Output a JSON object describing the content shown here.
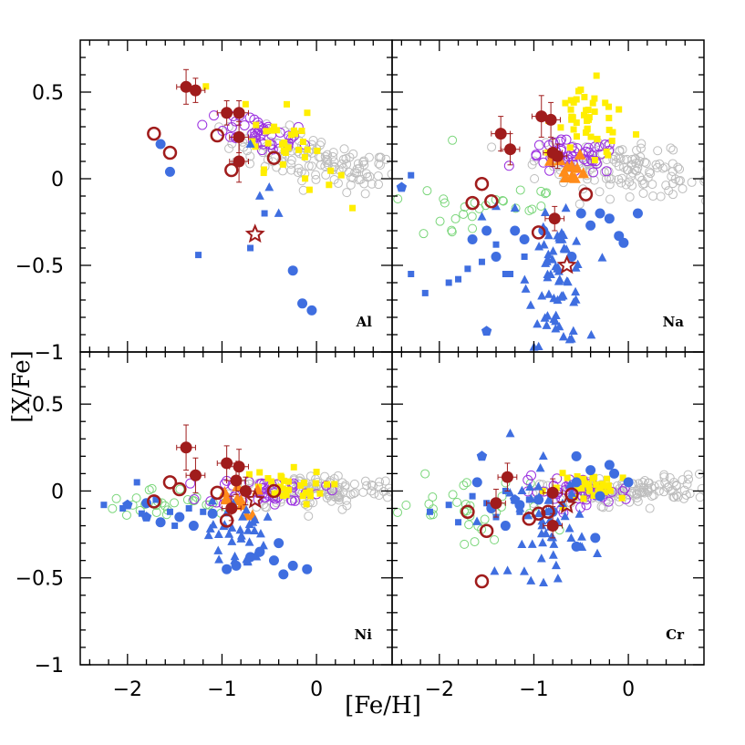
{
  "chart_data": {
    "type": "scatter",
    "xlabel": "[Fe/H]",
    "ylabel": "[X/Fe]",
    "xlim": [
      -2.5,
      0.8
    ],
    "ylim": [
      -1.0,
      0.8
    ],
    "x_ticks": [
      -2,
      -1,
      0
    ],
    "x_tick_labels": [
      "−2",
      "−1",
      "0"
    ],
    "y_ticks": [
      0.5,
      0,
      -0.5,
      -1
    ],
    "y_tick_labels": [
      "0.5",
      "0",
      "−0.5",
      "−1"
    ],
    "colors": {
      "gray": "#bdbdbd",
      "purple": "#9b30e0",
      "green": "#7ad67a",
      "yellow": "#ffee00",
      "orange": "#ff8c1a",
      "blue": "#3f6ee0",
      "darkred": "#a01c1c"
    },
    "panels": [
      {
        "label": "Al",
        "gray": {
          "cx": 0.0,
          "cy": 0.1,
          "sx": 0.45,
          "sy": 0.07,
          "slope": -0.12,
          "n": 130
        },
        "purple": {
          "cx": -0.6,
          "cy": 0.27,
          "sx": 0.28,
          "sy": 0.06,
          "slope": -0.15,
          "n": 45
        },
        "green": {
          "n": 0
        },
        "yellow": {
          "cx": -0.3,
          "cy": 0.2,
          "sx": 0.25,
          "sy": 0.1,
          "slope": -0.25,
          "n": 35
        },
        "orange": {
          "n": 0
        },
        "blue_triangles": [
          [
            -0.85,
            0.1
          ],
          [
            -0.7,
            0.2
          ],
          [
            -0.6,
            -0.1
          ],
          [
            -0.5,
            -0.05
          ],
          [
            -0.4,
            -0.2
          ]
        ],
        "blue_squares": [
          [
            -1.25,
            -0.44
          ],
          [
            -0.7,
            -0.4
          ],
          [
            -0.55,
            -0.2
          ]
        ],
        "blue_circles": [
          [
            -1.65,
            0.2
          ],
          [
            -1.55,
            0.04
          ],
          [
            -0.25,
            -0.53
          ],
          [
            -0.15,
            -0.72
          ],
          [
            -0.05,
            -0.76
          ]
        ],
        "red_filled": [
          [
            -1.38,
            0.53,
            0.1,
            0.1
          ],
          [
            -1.28,
            0.51,
            0.1,
            0.07
          ],
          [
            -0.95,
            0.38,
            0.1,
            0.07
          ],
          [
            -0.82,
            0.38,
            0.1,
            0.07
          ],
          [
            -0.82,
            0.24,
            0.1,
            0.09
          ],
          [
            -0.82,
            0.1,
            0.1,
            0.12
          ]
        ],
        "red_open": [
          [
            -1.72,
            0.26
          ],
          [
            -1.55,
            0.15
          ],
          [
            -1.05,
            0.25
          ],
          [
            -0.9,
            0.05
          ],
          [
            -0.45,
            0.12
          ]
        ],
        "red_star": [
          [
            -0.65,
            -0.32
          ]
        ]
      },
      {
        "label": "Na",
        "gray": {
          "cx": 0.0,
          "cy": 0.05,
          "sx": 0.5,
          "sy": 0.07,
          "slope": -0.08,
          "n": 130
        },
        "purple": {
          "cx": -0.6,
          "cy": 0.12,
          "sx": 0.25,
          "sy": 0.05,
          "slope": 0,
          "n": 50
        },
        "green": {
          "cx": -1.6,
          "cy": -0.15,
          "sx": 0.6,
          "sy": 0.12,
          "slope": 0.08,
          "n": 30
        },
        "yellow": {
          "cx": -0.4,
          "cy": 0.32,
          "sx": 0.2,
          "sy": 0.12,
          "slope": -0.3,
          "n": 45
        },
        "orange": {
          "cx": -0.6,
          "cy": 0.06,
          "sx": 0.08,
          "sy": 0.04,
          "slope": 0,
          "n": 12
        },
        "blue_triangle_cluster": {
          "cx": -0.75,
          "cy": -0.6,
          "sx": 0.15,
          "sy": 0.18,
          "n": 65
        },
        "blue_squares": [
          [
            -2.3,
            -0.55
          ],
          [
            -2.15,
            -0.66
          ],
          [
            -1.9,
            -0.6
          ],
          [
            -1.8,
            -0.58
          ],
          [
            -1.7,
            -0.52
          ],
          [
            -1.55,
            -0.48
          ],
          [
            -1.4,
            -0.38
          ],
          [
            -1.3,
            -0.55
          ],
          [
            -1.25,
            -0.55
          ],
          [
            -1.1,
            -0.45
          ],
          [
            -2.3,
            0.02
          ]
        ],
        "blue_circles": [
          [
            -1.65,
            -0.35
          ],
          [
            -1.5,
            -0.3
          ],
          [
            -1.4,
            -0.45
          ],
          [
            -1.2,
            -0.3
          ],
          [
            -1.1,
            -0.35
          ],
          [
            -0.9,
            -0.3
          ],
          [
            -0.5,
            -0.2
          ],
          [
            -0.4,
            -0.27
          ],
          [
            -0.3,
            -0.2
          ],
          [
            -0.2,
            -0.23
          ],
          [
            -0.1,
            -0.33
          ],
          [
            -0.05,
            -0.37
          ],
          [
            0.1,
            -0.2
          ],
          [
            -0.6,
            -0.45
          ]
        ],
        "blue_triangles": [
          [
            -1.55,
            -0.22
          ],
          [
            -1.4,
            -0.16
          ],
          [
            -1.2,
            -0.17
          ],
          [
            -0.9,
            -0.28
          ],
          [
            -0.75,
            -0.33
          ]
        ],
        "blue_pentagons": [
          [
            -1.5,
            -0.88
          ],
          [
            -2.4,
            -0.05
          ]
        ],
        "red_filled": [
          [
            -1.35,
            0.26,
            0.1,
            0.1
          ],
          [
            -1.25,
            0.17,
            0.1,
            0.09
          ],
          [
            -0.92,
            0.36,
            0.1,
            0.12
          ],
          [
            -0.82,
            0.34,
            0.1,
            0.1
          ],
          [
            -0.8,
            0.15,
            0.1,
            0.08
          ],
          [
            -0.75,
            0.13,
            0.1,
            0.07
          ],
          [
            -0.78,
            -0.23,
            0.1,
            0.07
          ]
        ],
        "red_open": [
          [
            -1.55,
            -0.03
          ],
          [
            -1.65,
            -0.14
          ],
          [
            -1.45,
            -0.13
          ],
          [
            -0.95,
            -0.31
          ],
          [
            -0.45,
            -0.09
          ]
        ],
        "red_star": [
          [
            -0.65,
            -0.5
          ]
        ]
      },
      {
        "label": "Ni",
        "gray": {
          "cx": 0.0,
          "cy": 0.0,
          "sx": 0.45,
          "sy": 0.05,
          "slope": 0.02,
          "n": 130
        },
        "purple": {
          "cx": -0.55,
          "cy": 0.0,
          "sx": 0.3,
          "sy": 0.04,
          "slope": 0,
          "n": 45
        },
        "green": {
          "cx": -1.7,
          "cy": -0.08,
          "sx": 0.45,
          "sy": 0.05,
          "slope": 0,
          "n": 30
        },
        "yellow": {
          "cx": -0.4,
          "cy": 0.02,
          "sx": 0.25,
          "sy": 0.05,
          "slope": 0,
          "n": 30
        },
        "orange": {
          "cx": -0.9,
          "cy": -0.05,
          "sx": 0.15,
          "sy": 0.05,
          "slope": 0,
          "n": 10
        },
        "blue_triangle_cluster": {
          "cx": -0.85,
          "cy": -0.25,
          "sx": 0.15,
          "sy": 0.1,
          "n": 35
        },
        "blue_squares": [
          [
            -2.05,
            -0.1
          ],
          [
            -1.9,
            0.05
          ],
          [
            -1.85,
            -0.13
          ],
          [
            -1.7,
            -0.05
          ],
          [
            -1.55,
            -0.12
          ],
          [
            -1.5,
            -0.2
          ],
          [
            -1.35,
            -0.1
          ],
          [
            -1.2,
            -0.12
          ],
          [
            -2.25,
            -0.08
          ]
        ],
        "blue_circles": [
          [
            -1.8,
            -0.07
          ],
          [
            -1.65,
            -0.18
          ],
          [
            -1.45,
            -0.15
          ],
          [
            -1.3,
            -0.2
          ],
          [
            -1.1,
            -0.13
          ],
          [
            -0.95,
            -0.45
          ],
          [
            -0.85,
            -0.43
          ],
          [
            -0.7,
            -0.38
          ],
          [
            -0.6,
            -0.35
          ],
          [
            -0.45,
            -0.4
          ],
          [
            -0.35,
            -0.48
          ],
          [
            -0.25,
            -0.43
          ],
          [
            -0.1,
            -0.45
          ],
          [
            -0.4,
            -0.3
          ]
        ],
        "blue_pentagons": [
          [
            -2.0,
            -0.08
          ],
          [
            -1.8,
            -0.15
          ]
        ],
        "red_filled": [
          [
            -1.38,
            0.25,
            0.1,
            0.13
          ],
          [
            -1.28,
            0.09,
            0.1,
            0.1
          ],
          [
            -0.95,
            0.16,
            0.1,
            0.1
          ],
          [
            -0.82,
            0.14,
            0.1,
            0.1
          ],
          [
            -0.85,
            0.06,
            0.1,
            0.08
          ],
          [
            -0.75,
            0.0,
            0.1,
            0.08
          ],
          [
            -0.9,
            -0.1,
            0.1,
            0.07
          ]
        ],
        "red_open": [
          [
            -1.72,
            -0.06
          ],
          [
            -1.55,
            0.05
          ],
          [
            -1.45,
            0.01
          ],
          [
            -1.05,
            -0.01
          ],
          [
            -0.95,
            -0.17
          ],
          [
            -0.45,
            0.0
          ]
        ],
        "red_star": [
          [
            -0.65,
            -0.05
          ]
        ]
      },
      {
        "label": "Cr",
        "gray": {
          "cx": 0.0,
          "cy": 0.0,
          "sx": 0.45,
          "sy": 0.04,
          "slope": 0.02,
          "n": 130
        },
        "purple": {
          "cx": -0.55,
          "cy": 0.0,
          "sx": 0.3,
          "sy": 0.04,
          "slope": 0,
          "n": 45
        },
        "green": {
          "cx": -1.8,
          "cy": -0.12,
          "sx": 0.5,
          "sy": 0.1,
          "slope": 0,
          "n": 35
        },
        "yellow": {
          "cx": -0.35,
          "cy": 0.02,
          "sx": 0.25,
          "sy": 0.04,
          "slope": 0,
          "n": 30
        },
        "orange": {
          "n": 0
        },
        "blue_triangle_cluster": {
          "cx": -0.85,
          "cy": -0.2,
          "sx": 0.2,
          "sy": 0.15,
          "n": 50
        },
        "blue_squares": [
          [
            -2.1,
            -0.12
          ],
          [
            -1.9,
            -0.08
          ],
          [
            -1.8,
            -0.18
          ],
          [
            -1.65,
            -0.03
          ],
          [
            -1.5,
            -0.07
          ],
          [
            -1.4,
            -0.15
          ],
          [
            -1.3,
            0.0
          ],
          [
            -1.15,
            -0.12
          ],
          [
            -1.05,
            -0.05
          ]
        ],
        "blue_circles": [
          [
            -1.6,
            0.05
          ],
          [
            -1.45,
            -0.1
          ],
          [
            -1.3,
            -0.2
          ],
          [
            -1.15,
            -0.08
          ],
          [
            -0.95,
            -0.05
          ],
          [
            -0.8,
            -0.12
          ],
          [
            -0.55,
            0.05
          ],
          [
            -0.4,
            0.12
          ],
          [
            -0.3,
            -0.03
          ],
          [
            -0.2,
            0.15
          ],
          [
            -0.15,
            0.1
          ],
          [
            0.0,
            0.05
          ],
          [
            -0.55,
            -0.32
          ],
          [
            -0.35,
            -0.27
          ],
          [
            -0.55,
            0.2
          ]
        ],
        "blue_pentagons": [
          [
            -1.55,
            0.2
          ],
          [
            -1.2,
            -0.05
          ]
        ],
        "blue_triangles": [
          [
            -1.25,
            0.33
          ],
          [
            -0.9,
            0.2
          ]
        ],
        "red_filled": [
          [
            -1.28,
            0.08,
            0.1,
            0.08
          ],
          [
            -1.4,
            -0.07,
            0.1,
            0.08
          ],
          [
            -0.8,
            -0.01,
            0.1,
            0.08
          ],
          [
            -0.8,
            -0.2,
            0.1,
            0.07
          ]
        ],
        "red_open": [
          [
            -1.7,
            -0.12
          ],
          [
            -1.5,
            -0.23
          ],
          [
            -1.05,
            -0.16
          ],
          [
            -0.95,
            -0.13
          ],
          [
            -0.85,
            -0.12
          ],
          [
            -0.6,
            -0.02
          ],
          [
            -1.55,
            -0.52
          ]
        ],
        "red_star": [
          [
            -0.65,
            -0.08
          ]
        ]
      }
    ]
  }
}
